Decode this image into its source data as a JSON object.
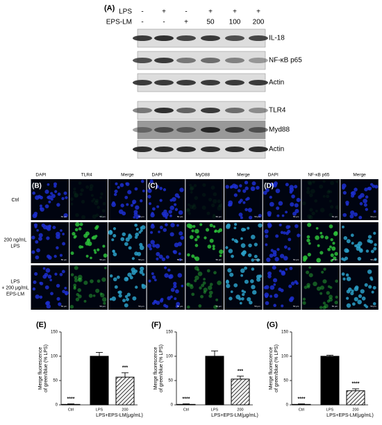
{
  "panel_a": {
    "label": "(A)",
    "rows": [
      {
        "name": "LPS",
        "values": [
          "-",
          "+",
          "-",
          "+",
          "+",
          "+"
        ]
      },
      {
        "name": "EPS-LM",
        "values": [
          "-",
          "-",
          "+",
          "50",
          "100",
          "200"
        ]
      }
    ],
    "blots": [
      "IL-18",
      "NF-κB p65",
      "Actin",
      "TLR4",
      "Myd88",
      "Actin"
    ]
  },
  "panel_bcd": {
    "labels": [
      "(B)",
      "(C)",
      "(D)"
    ],
    "columns": [
      "DAPI",
      "TLR4",
      "Merge",
      "DAPI",
      "MyD88",
      "Merge",
      "DAPI",
      "NF-κB p65",
      "Merge"
    ],
    "rows": [
      [
        "Ctrl"
      ],
      [
        "200 ng/mL",
        "LPS"
      ],
      [
        "LPS",
        "+ 200 μg/mL",
        "EPS-LM"
      ]
    ],
    "scale_bar": "50 μm"
  },
  "chart_data": [
    {
      "type": "bar",
      "label": "(E)",
      "ylabel": [
        "Merge fluorescence",
        "of green/blue (% LPS)"
      ],
      "xlabel": "LPS+EPS-LM(μg/mL)",
      "categories": [
        "Ctrl",
        "LPS",
        "200"
      ],
      "values": [
        1,
        100,
        57
      ],
      "errors": [
        1,
        8,
        9
      ],
      "sig_labels": [
        "****",
        null,
        "***"
      ],
      "colors": [
        "#ffffff",
        "#000000",
        "#ffffff"
      ],
      "hatch": [
        false,
        false,
        true
      ],
      "ylim": [
        0,
        150
      ],
      "yticks": [
        0,
        50,
        100,
        150
      ]
    },
    {
      "type": "bar",
      "label": "(F)",
      "ylabel": [
        "Merge fluorescence",
        "of green/blue (% LPS)"
      ],
      "xlabel": "LPS+EPS-LM(μg/mL)",
      "categories": [
        "Ctrl",
        "LPS",
        "200"
      ],
      "values": [
        1,
        100,
        53
      ],
      "errors": [
        1,
        11,
        6
      ],
      "sig_labels": [
        "****",
        null,
        "***"
      ],
      "colors": [
        "#ffffff",
        "#000000",
        "#ffffff"
      ],
      "hatch": [
        false,
        false,
        true
      ],
      "ylim": [
        0,
        150
      ],
      "yticks": [
        0,
        50,
        100,
        150
      ]
    },
    {
      "type": "bar",
      "label": "(G)",
      "ylabel": [
        "Merge fluorescence",
        "of green/blue (% LPS)"
      ],
      "xlabel": "LPS+EPS-LM(μg/mL)",
      "categories": [
        "Ctrl",
        "LPS",
        "200"
      ],
      "values": [
        1,
        100,
        29
      ],
      "errors": [
        1,
        2,
        4
      ],
      "sig_labels": [
        "****",
        null,
        "****"
      ],
      "colors": [
        "#ffffff",
        "#000000",
        "#ffffff"
      ],
      "hatch": [
        false,
        false,
        true
      ],
      "ylim": [
        0,
        150
      ],
      "yticks": [
        0,
        50,
        100,
        150
      ]
    }
  ]
}
